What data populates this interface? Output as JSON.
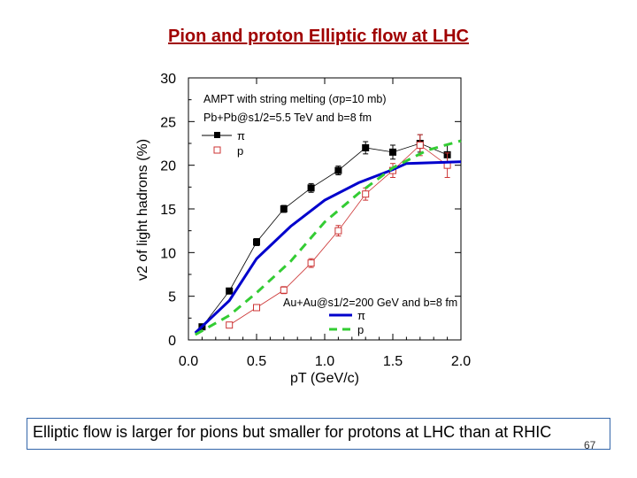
{
  "slide": {
    "title": "Pion and proton Elliptic flow at LHC",
    "caption": "Elliptic flow is larger for pions but smaller for protons at LHC than at RHIC",
    "page_number": "67"
  },
  "chart_data": {
    "type": "line",
    "title": "",
    "xlabel": "pT (GeV/c)",
    "ylabel": "v2 of light hadrons (%)",
    "xlim": [
      0.0,
      2.0
    ],
    "ylim": [
      0,
      30
    ],
    "x_ticks": [
      "0.0",
      "0.5",
      "1.0",
      "1.5",
      "2.0"
    ],
    "y_ticks": [
      "0",
      "5",
      "10",
      "15",
      "20",
      "25",
      "30"
    ],
    "grid": false,
    "legend_lhc": {
      "header": "AMPT with string melting (σp=10 mb)",
      "system": "Pb+Pb@s1/2=5.5 TeV and b=8 fm",
      "entries": [
        "π",
        "p"
      ]
    },
    "legend_rhic": {
      "system": "Au+Au@s1/2=200 GeV and b=8 fm",
      "entries": [
        "π",
        "p"
      ]
    },
    "series": [
      {
        "name": "π",
        "style": "black-squares-line",
        "color": "#000000",
        "x": [
          0.1,
          0.3,
          0.5,
          0.7,
          0.9,
          1.1,
          1.3,
          1.5,
          1.7,
          1.9
        ],
        "y": [
          1.5,
          5.6,
          11.2,
          15.0,
          17.4,
          19.4,
          22.0,
          21.5,
          22.5,
          21.2
        ],
        "err": [
          0.3,
          0.3,
          0.4,
          0.4,
          0.5,
          0.5,
          0.7,
          0.8,
          1.0,
          1.2
        ]
      },
      {
        "name": "p",
        "style": "red-open-squares-line",
        "color": "#cc3333",
        "x": [
          0.3,
          0.5,
          0.7,
          0.9,
          1.1,
          1.3,
          1.5,
          1.7,
          1.9
        ],
        "y": [
          1.7,
          3.7,
          5.7,
          8.8,
          12.5,
          16.7,
          19.4,
          22.3,
          20.0
        ],
        "err": [
          0.3,
          0.3,
          0.4,
          0.5,
          0.6,
          0.7,
          0.8,
          1.2,
          1.4
        ]
      },
      {
        "name": "π",
        "style": "blue-solid",
        "color": "#0000cc",
        "x": [
          0.05,
          0.3,
          0.5,
          0.75,
          1.0,
          1.25,
          1.5,
          1.6,
          2.0
        ],
        "y": [
          0.8,
          4.5,
          9.3,
          13.0,
          16.0,
          18.0,
          19.5,
          20.2,
          20.4
        ]
      },
      {
        "name": "p",
        "style": "green-dashed",
        "color": "#33cc33",
        "x": [
          0.05,
          0.3,
          0.5,
          0.75,
          1.0,
          1.25,
          1.5,
          1.75,
          2.0
        ],
        "y": [
          0.6,
          2.8,
          5.4,
          9.0,
          13.5,
          16.8,
          19.7,
          21.7,
          22.8
        ]
      }
    ]
  }
}
